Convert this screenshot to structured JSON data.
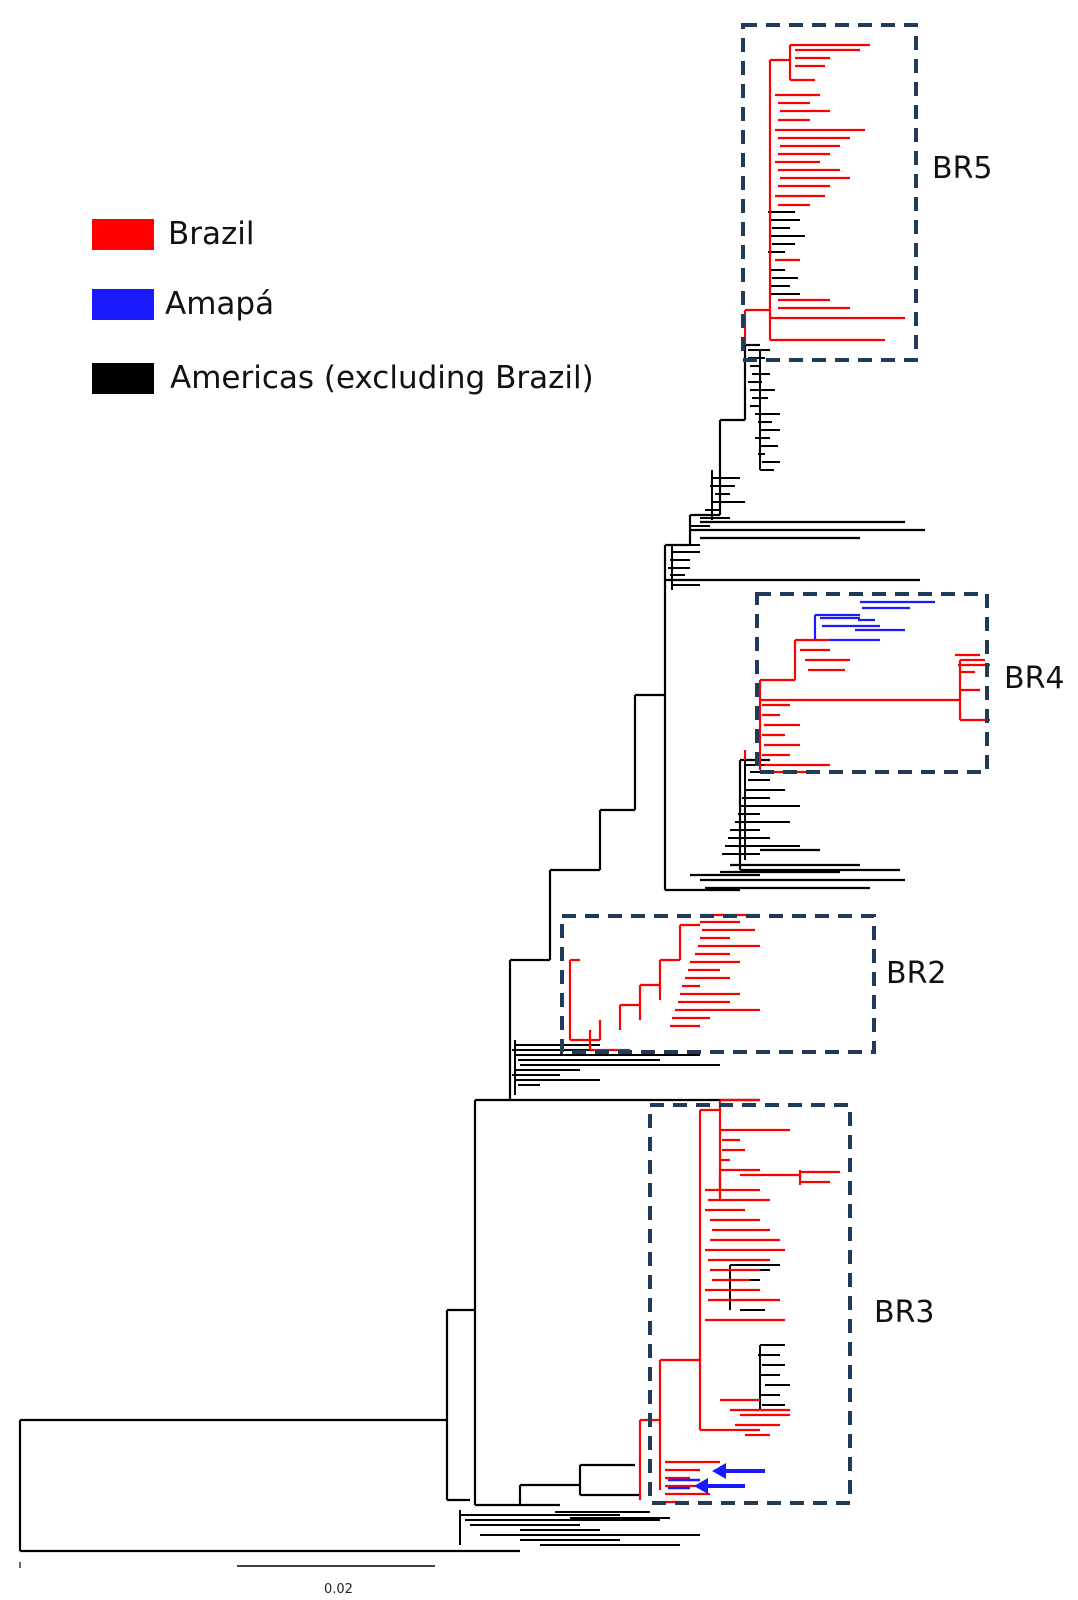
{
  "legend": {
    "items": [
      {
        "label": "Brazil",
        "color": "#ff0000"
      },
      {
        "label": "Amapá",
        "color": "#1a1aff"
      },
      {
        "label": "Americas (excluding Brazil)",
        "color": "#000000"
      }
    ]
  },
  "clades": [
    {
      "id": "br5",
      "label": "BR5"
    },
    {
      "id": "br4",
      "label": "BR4"
    },
    {
      "id": "br2",
      "label": "BR2"
    },
    {
      "id": "br3",
      "label": "BR3"
    }
  ],
  "scale_bar": {
    "label": "0.02"
  },
  "colors": {
    "box": "#1f3b57",
    "brazil": "#ff0000",
    "amapa": "#1a1aff",
    "other": "#000000"
  }
}
